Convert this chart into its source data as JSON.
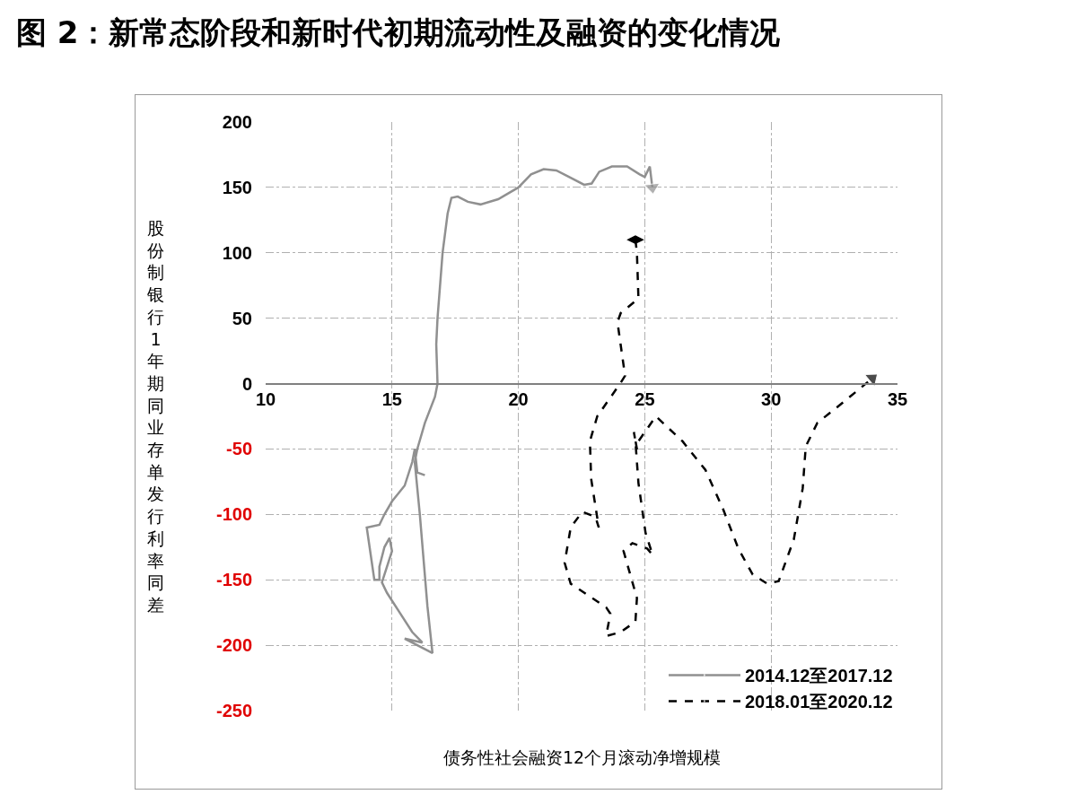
{
  "chart_data": {
    "type": "line",
    "title": "图 2：新常态阶段和新时代初期流动性及融资的变化情况",
    "xlabel": "债务性社会融资12个月滚动净增规模",
    "ylabel": "股份制银行1年期同业存单发行利率同差",
    "xlim": [
      10,
      35
    ],
    "xticks": [
      10,
      15,
      20,
      25,
      30,
      35
    ],
    "ylim": [
      -250,
      200
    ],
    "yticks": [
      -250,
      -200,
      -150,
      -100,
      -50,
      0,
      50,
      100,
      150,
      200
    ],
    "grid": true,
    "legend": "bottom right",
    "series": [
      {
        "name": "2014.12至2017.12",
        "color": "#909090",
        "line_style": "solid",
        "x": [
          16.3,
          16.0,
          15.9,
          15.8,
          15.5,
          15.0,
          14.7,
          14.5,
          14.0,
          14.3,
          14.5,
          14.5,
          14.7,
          14.9,
          15.0,
          14.8,
          14.6,
          14.8,
          15.3,
          15.8,
          16.2,
          15.5,
          16.0,
          16.6,
          16.4,
          16.1,
          15.9,
          16.0,
          16.3,
          16.7,
          16.8,
          16.75,
          16.8,
          17.0,
          17.2,
          17.35,
          17.6,
          18.0,
          18.5,
          19.2,
          20.0,
          20.5,
          21.0,
          21.5,
          22.0,
          22.6,
          22.9,
          23.2,
          23.7,
          24.3,
          24.8,
          25.0,
          25.2,
          25.3
        ],
        "values": [
          -70,
          -68,
          -50,
          -60,
          -78,
          -90,
          -100,
          -108,
          -110,
          -150,
          -150,
          -140,
          -125,
          -118,
          -128,
          -140,
          -152,
          -160,
          -175,
          -190,
          -198,
          -195,
          -200,
          -206,
          -170,
          -100,
          -60,
          -50,
          -30,
          -10,
          0,
          30,
          50,
          100,
          130,
          142,
          143,
          139,
          137,
          141,
          150,
          160,
          164,
          163,
          158,
          152,
          153,
          162,
          166,
          166,
          160,
          158,
          166,
          150
        ]
      },
      {
        "name": "2018.01至2020.12",
        "color": "#000000",
        "line_style": "dashed",
        "x": [
          24.63,
          24.69,
          24.75,
          24.05,
          23.92,
          24.22,
          24.05,
          23.12,
          22.83,
          22.88,
          23.18,
          23.05,
          22.53,
          22.07,
          21.83,
          22.07,
          23.47,
          23.64,
          23.47,
          24.05,
          24.63,
          24.69,
          24.16,
          24.51,
          25.09,
          25.31,
          25.03,
          24.75,
          24.63,
          24.57,
          24.69,
          24.75,
          25.44,
          26.49,
          27.4,
          28.1,
          28.7,
          29.27,
          29.85,
          30.3,
          30.9,
          31.25,
          31.37,
          31.83,
          32.87,
          34.0
        ],
        "values": [
          110,
          100,
          65,
          54,
          47,
          6,
          0.7,
          -25,
          -44,
          -73,
          -110,
          -102,
          -98,
          -110,
          -137,
          -153,
          -171,
          -176,
          -193,
          -190,
          -182,
          -164,
          -128,
          -122,
          -126,
          -131,
          -114,
          -76,
          -44,
          -37,
          -50,
          -44,
          -25,
          -44,
          -66,
          -96,
          -126,
          -146,
          -153,
          -151,
          -119,
          -80,
          -48,
          -30,
          -14,
          4
        ]
      }
    ]
  }
}
